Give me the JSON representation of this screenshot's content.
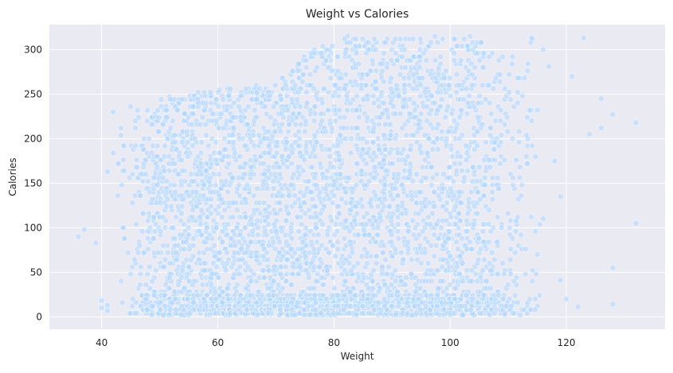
{
  "chart_data": {
    "type": "scatter",
    "title": "Weight vs Calories",
    "xlabel": "Weight",
    "ylabel": "Calories",
    "xlim": [
      31,
      137
    ],
    "ylim": [
      -14,
      328
    ],
    "xticks": [
      40,
      60,
      80,
      100,
      120
    ],
    "yticks": [
      0,
      50,
      100,
      150,
      200,
      250,
      300
    ],
    "grid": true,
    "legend": "none",
    "colors": {
      "background": "#eaeaf2",
      "grid": "#ffffff",
      "point_fill": "#b3d7ff",
      "point_edge": "#ffffff"
    },
    "point_alpha": 0.6,
    "density_profile": [
      {
        "x": 36,
        "count": 1
      },
      {
        "x": 37,
        "count": 1
      },
      {
        "x": 39,
        "count": 1
      },
      {
        "x": 40,
        "count": 2
      },
      {
        "x": 41,
        "count": 3
      },
      {
        "x": 42,
        "count": 4
      },
      {
        "x": 43,
        "count": 7
      },
      {
        "x": 44,
        "count": 10
      },
      {
        "x": 45,
        "count": 14
      },
      {
        "x": 46,
        "count": 22
      },
      {
        "x": 48,
        "count": 45
      },
      {
        "x": 50,
        "count": 60
      },
      {
        "x": 60,
        "count": 70
      },
      {
        "x": 70,
        "count": 70
      },
      {
        "x": 80,
        "count": 70
      },
      {
        "x": 90,
        "count": 70
      },
      {
        "x": 100,
        "count": 65
      },
      {
        "x": 106,
        "count": 55
      },
      {
        "x": 108,
        "count": 35
      },
      {
        "x": 110,
        "count": 25
      },
      {
        "x": 112,
        "count": 20
      },
      {
        "x": 114,
        "count": 12
      },
      {
        "x": 116,
        "count": 5
      },
      {
        "x": 118,
        "count": 4
      },
      {
        "x": 120,
        "count": 5
      },
      {
        "x": 122,
        "count": 3
      },
      {
        "x": 124,
        "count": 1
      },
      {
        "x": 126,
        "count": 2
      },
      {
        "x": 128,
        "count": 2
      },
      {
        "x": 132,
        "count": 2
      }
    ],
    "calorie_max_profile": [
      {
        "x": 40,
        "ymax": 30
      },
      {
        "x": 42,
        "ymax": 230
      },
      {
        "x": 45,
        "ymax": 238
      },
      {
        "x": 50,
        "ymax": 245
      },
      {
        "x": 60,
        "ymax": 255
      },
      {
        "x": 70,
        "ymax": 265
      },
      {
        "x": 76,
        "ymax": 300
      },
      {
        "x": 80,
        "ymax": 315
      },
      {
        "x": 90,
        "ymax": 315
      },
      {
        "x": 100,
        "ymax": 315
      },
      {
        "x": 104,
        "ymax": 315
      },
      {
        "x": 110,
        "ymax": 290
      },
      {
        "x": 114,
        "ymax": 315
      },
      {
        "x": 120,
        "ymax": 270
      },
      {
        "x": 123,
        "ymax": 315
      },
      {
        "x": 128,
        "ymax": 250
      },
      {
        "x": 132,
        "ymax": 220
      }
    ],
    "points": [
      {
        "x": 36,
        "y": 90
      },
      {
        "x": 37,
        "y": 98
      },
      {
        "x": 39,
        "y": 83
      },
      {
        "x": 40,
        "y": 18
      },
      {
        "x": 40,
        "y": 10
      },
      {
        "x": 41,
        "y": 13
      },
      {
        "x": 41,
        "y": 7
      },
      {
        "x": 41,
        "y": 163
      },
      {
        "x": 42,
        "y": 230
      },
      {
        "x": 42,
        "y": 184
      },
      {
        "x": 116,
        "y": 300
      },
      {
        "x": 114,
        "y": 313
      },
      {
        "x": 123,
        "y": 313
      },
      {
        "x": 124,
        "y": 205
      },
      {
        "x": 126,
        "y": 245
      },
      {
        "x": 126,
        "y": 212
      },
      {
        "x": 128,
        "y": 227
      },
      {
        "x": 128,
        "y": 55
      },
      {
        "x": 128,
        "y": 14
      },
      {
        "x": 132,
        "y": 218
      },
      {
        "x": 132,
        "y": 105
      },
      {
        "x": 122,
        "y": 11
      },
      {
        "x": 119,
        "y": 41
      },
      {
        "x": 119,
        "y": 135
      },
      {
        "x": 121,
        "y": 270
      },
      {
        "x": 117,
        "y": 281
      },
      {
        "x": 118,
        "y": 175
      },
      {
        "x": 116,
        "y": 110
      },
      {
        "x": 115,
        "y": 70
      },
      {
        "x": 120,
        "y": 20
      }
    ]
  }
}
